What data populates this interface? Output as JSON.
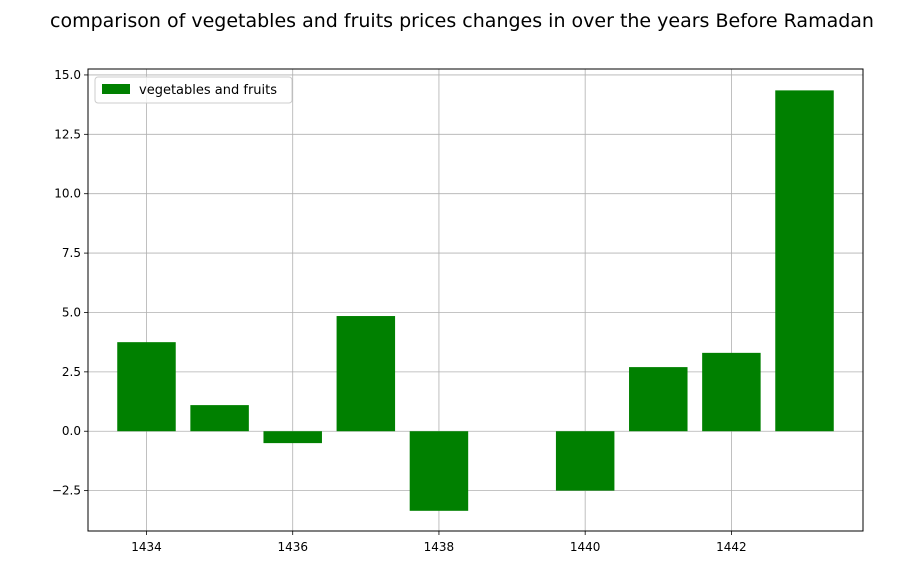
{
  "chart_data": {
    "type": "bar",
    "title": "comparison of vegetables and fruits prices changes in over the years Before Ramadan",
    "xlabel": "",
    "ylabel": "",
    "x": [
      1434,
      1435,
      1436,
      1437,
      1438,
      1440,
      1441,
      1442,
      1443
    ],
    "series": [
      {
        "name": "vegetables and fruits",
        "values": [
          3.75,
          1.1,
          -0.5,
          4.85,
          -3.35,
          -2.5,
          2.7,
          3.3,
          14.35
        ],
        "color": "#008000"
      }
    ],
    "xlim": [
      1433.2,
      1443.8
    ],
    "ylim": [
      -4.2,
      15.25
    ],
    "xticks": [
      "1434",
      "1436",
      "1438",
      "1440",
      "1442"
    ],
    "yticks": [
      "−2.5",
      "0.0",
      "2.5",
      "5.0",
      "7.5",
      "10.0",
      "12.5",
      "15.0"
    ],
    "grid": true,
    "legend_position": "top-left"
  }
}
